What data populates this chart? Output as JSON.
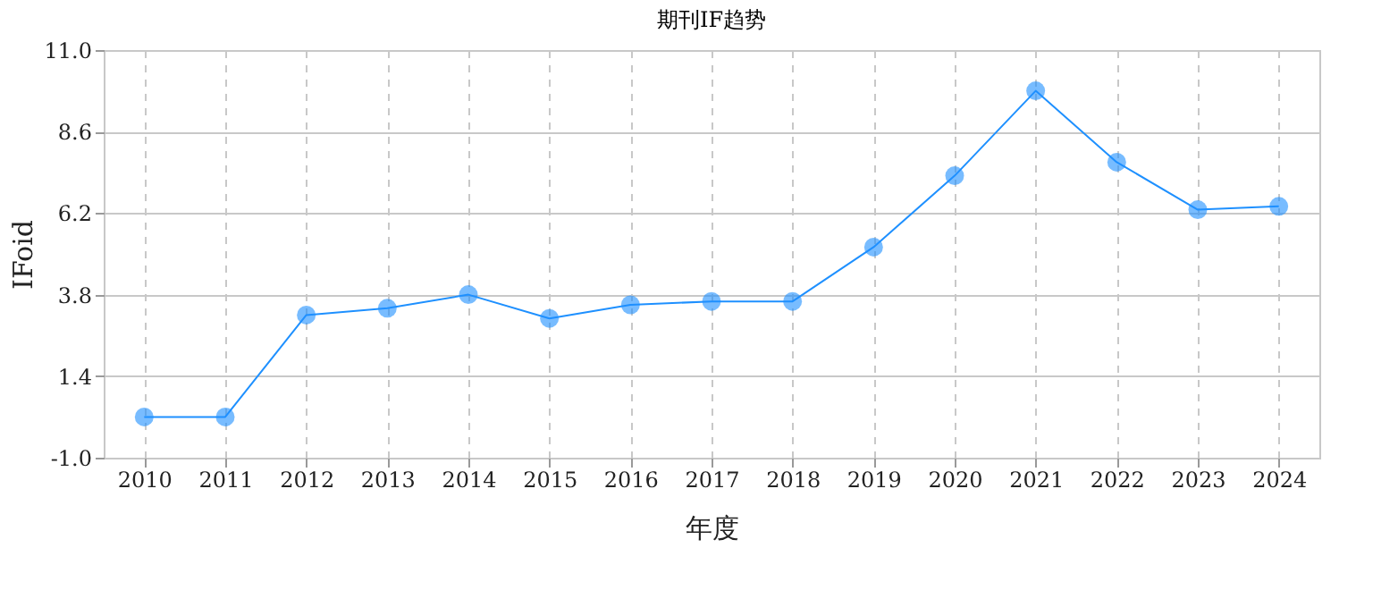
{
  "chart_data": {
    "type": "line",
    "title": "期刊IF趋势",
    "xlabel": "年度",
    "ylabel": "IFoid",
    "categories": [
      "2010",
      "2011",
      "2012",
      "2013",
      "2014",
      "2015",
      "2016",
      "2017",
      "2018",
      "2019",
      "2020",
      "2021",
      "2022",
      "2023",
      "2024"
    ],
    "series": [
      {
        "color": "#1e90ff",
        "values": [
          0.2,
          0.2,
          3.2,
          3.4,
          3.8,
          3.1,
          3.5,
          3.6,
          3.6,
          5.2,
          7.3,
          9.8,
          7.7,
          6.3,
          6.4
        ]
      }
    ],
    "ylim": [
      -1.0,
      11.0
    ],
    "yticks": [
      {
        "value": -1.0,
        "label": "-1.0"
      },
      {
        "value": 1.4,
        "label": "1.4"
      },
      {
        "value": 3.8,
        "label": "3.8"
      },
      {
        "value": 6.2,
        "label": "6.2"
      },
      {
        "value": 8.6,
        "label": "8.6"
      },
      {
        "value": 11.0,
        "label": "11.0"
      }
    ],
    "grid": true,
    "marker": "circle",
    "line_style": "solid"
  }
}
